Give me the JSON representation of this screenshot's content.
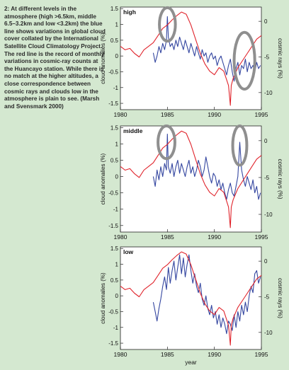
{
  "caption": "2: At different levels in the atmosphere (high >6.5km, middle 6.5–3.2km and low <3.2km) the blue line shows variations in global cloud cover collated by the International Satellite Cloud Climatology Project. The red line is the record of monthly variations in cosmic-ray counts at the Huancayo station. While there is no match at the higher altitudes, a close correspondence between cosmic rays and clouds low in the atmosphere is plain to see. (Marsh and Svensmark 2000)",
  "colors": {
    "background": "#d4e8d0",
    "plot_background": "#ffffff",
    "cloud_series": "#3446a0",
    "cosmic_series": "#e0242c",
    "highlight_circle": "#8f8f8f"
  },
  "chart_data": [
    {
      "type": "line",
      "panel_label": "high",
      "xlabel": "",
      "ylabel": "cloud anomalies (%)",
      "ylabel_right": "cosmic rays (%)",
      "xlim": [
        1980,
        1995
      ],
      "ylim": [
        -1.7,
        1.55
      ],
      "ylim_right": [
        -12.4,
        2.0
      ],
      "xticks": [
        1980,
        1985,
        1990,
        1995
      ],
      "yticks": [
        -1.5,
        -1.0,
        -0.5,
        0.0,
        0.5,
        1.0,
        1.5
      ],
      "yticks_right": [
        0,
        -5,
        -10
      ],
      "highlights": [
        {
          "x": 1985.0,
          "y": 1.0,
          "rx": 0.85,
          "ry": 0.53
        },
        {
          "x": 1993.2,
          "y": -0.15,
          "rx": 1.1,
          "ry": 0.9
        }
      ],
      "series": [
        {
          "name": "",
          "axis": "left",
          "x": [
            1983.5,
            1983.7,
            1983.9,
            1984.1,
            1984.3,
            1984.5,
            1984.7,
            1984.9,
            1985.0,
            1985.1,
            1985.3,
            1985.5,
            1985.7,
            1985.9,
            1986.1,
            1986.3,
            1986.5,
            1986.7,
            1986.9,
            1987.1,
            1987.3,
            1987.5,
            1987.7,
            1987.9,
            1988.1,
            1988.3,
            1988.5,
            1988.7,
            1988.9,
            1989.1,
            1989.3,
            1989.5,
            1989.7,
            1989.9,
            1990.1,
            1990.3,
            1990.5,
            1990.7,
            1990.9,
            1991.1,
            1991.3,
            1991.5,
            1991.7,
            1991.9,
            1992.1,
            1992.3,
            1992.5,
            1992.7,
            1992.9,
            1993.1,
            1993.3,
            1993.5,
            1993.7,
            1993.9,
            1994.1,
            1994.3,
            1994.5,
            1994.7,
            1994.9
          ],
          "y": [
            0.1,
            -0.2,
            0.0,
            0.3,
            0.1,
            0.4,
            0.2,
            0.5,
            1.25,
            0.6,
            0.3,
            0.4,
            0.2,
            0.5,
            0.3,
            0.6,
            0.4,
            0.2,
            0.5,
            0.3,
            0.1,
            0.4,
            0.2,
            0.0,
            0.3,
            0.1,
            -0.1,
            0.2,
            0.0,
            0.1,
            -0.2,
            0.0,
            0.1,
            -0.1,
            0.0,
            -0.3,
            -0.1,
            0.0,
            -0.2,
            -0.4,
            -0.6,
            -0.3,
            -0.1,
            -0.5,
            -0.8,
            -0.4,
            -0.2,
            -0.6,
            -0.3,
            -0.4,
            -0.1,
            -0.5,
            -0.2,
            -0.4,
            -0.3,
            -0.5,
            -0.2,
            -0.4,
            -0.3
          ]
        },
        {
          "name": "",
          "axis": "right",
          "x": [
            1980.0,
            1980.5,
            1981.0,
            1981.5,
            1982.0,
            1982.5,
            1983.0,
            1983.5,
            1984.0,
            1984.5,
            1985.0,
            1985.5,
            1986.0,
            1986.5,
            1987.0,
            1987.5,
            1988.0,
            1988.5,
            1989.0,
            1989.5,
            1990.0,
            1990.5,
            1991.0,
            1991.5,
            1991.7,
            1991.8,
            1992.0,
            1992.5,
            1993.0,
            1993.5,
            1994.0,
            1994.5,
            1995.0
          ],
          "y": [
            -3.5,
            -4.0,
            -3.8,
            -4.5,
            -5.0,
            -4.0,
            -3.5,
            -3.0,
            -2.0,
            -1.0,
            -0.5,
            0.2,
            0.8,
            1.3,
            1.0,
            -0.5,
            -2.5,
            -4.5,
            -6.0,
            -7.0,
            -7.5,
            -6.5,
            -7.0,
            -9.0,
            -11.8,
            -9.0,
            -8.0,
            -6.5,
            -5.5,
            -4.5,
            -3.5,
            -2.5,
            -2.0
          ]
        }
      ]
    },
    {
      "type": "line",
      "panel_label": "middle",
      "xlabel": "",
      "ylabel": "cloud anomalies (%)",
      "ylabel_right": "cosmic rays (%)",
      "xlim": [
        1980,
        1995
      ],
      "ylim": [
        -1.7,
        1.55
      ],
      "ylim_right": [
        -12.4,
        2.0
      ],
      "xticks": [
        1980,
        1985,
        1990,
        1995
      ],
      "yticks": [
        -1.5,
        -1.0,
        -0.5,
        0.0,
        0.5,
        1.0,
        1.5
      ],
      "yticks_right": [
        0,
        -5,
        -10
      ],
      "highlights": [
        {
          "x": 1984.9,
          "y": 1.05,
          "rx": 0.9,
          "ry": 0.5
        },
        {
          "x": 1992.7,
          "y": 0.95,
          "rx": 0.75,
          "ry": 0.6
        }
      ],
      "series": [
        {
          "name": "",
          "axis": "left",
          "x": [
            1983.5,
            1983.7,
            1983.9,
            1984.1,
            1984.3,
            1984.5,
            1984.7,
            1984.9,
            1985.0,
            1985.1,
            1985.3,
            1985.5,
            1985.7,
            1985.9,
            1986.1,
            1986.3,
            1986.5,
            1986.7,
            1986.9,
            1987.1,
            1987.3,
            1987.5,
            1987.7,
            1987.9,
            1988.1,
            1988.3,
            1988.5,
            1988.7,
            1988.9,
            1989.1,
            1989.3,
            1989.5,
            1989.7,
            1989.9,
            1990.1,
            1990.3,
            1990.5,
            1990.7,
            1990.9,
            1991.1,
            1991.3,
            1991.5,
            1991.7,
            1991.9,
            1992.1,
            1992.3,
            1992.5,
            1992.7,
            1992.9,
            1993.1,
            1993.3,
            1993.5,
            1993.7,
            1993.9,
            1994.1,
            1994.3,
            1994.5,
            1994.7,
            1994.9
          ],
          "y": [
            0.0,
            -0.3,
            0.2,
            -0.1,
            0.3,
            0.0,
            0.4,
            0.2,
            1.3,
            0.3,
            0.1,
            0.4,
            0.0,
            0.3,
            0.5,
            0.1,
            0.4,
            0.2,
            0.0,
            0.3,
            0.5,
            0.1,
            0.3,
            0.0,
            0.2,
            0.5,
            0.3,
            0.0,
            0.2,
            0.6,
            0.3,
            0.0,
            -0.2,
            0.1,
            0.0,
            -0.3,
            -0.1,
            -0.4,
            -0.2,
            -0.5,
            -0.7,
            -0.4,
            -0.2,
            -0.5,
            -0.6,
            -0.3,
            0.0,
            1.05,
            0.2,
            -0.1,
            -0.3,
            0.0,
            -0.2,
            -0.4,
            -0.1,
            -0.5,
            -0.3,
            -0.7,
            -0.5
          ]
        },
        {
          "name": "",
          "axis": "right",
          "x": [
            1980.0,
            1980.5,
            1981.0,
            1981.5,
            1982.0,
            1982.5,
            1983.0,
            1983.5,
            1984.0,
            1984.5,
            1985.0,
            1985.5,
            1986.0,
            1986.5,
            1987.0,
            1987.5,
            1988.0,
            1988.5,
            1989.0,
            1989.5,
            1990.0,
            1990.5,
            1991.0,
            1991.5,
            1991.7,
            1991.8,
            1992.0,
            1992.5,
            1993.0,
            1993.5,
            1994.0,
            1994.5,
            1995.0
          ],
          "y": [
            -3.5,
            -4.0,
            -3.8,
            -4.5,
            -5.0,
            -4.0,
            -3.5,
            -3.0,
            -2.0,
            -1.0,
            -0.5,
            0.2,
            0.8,
            1.3,
            1.0,
            -0.5,
            -2.5,
            -4.5,
            -6.0,
            -7.0,
            -7.5,
            -6.5,
            -7.0,
            -9.0,
            -11.8,
            -9.0,
            -8.0,
            -6.5,
            -5.5,
            -4.5,
            -3.5,
            -2.5,
            -2.0
          ]
        }
      ]
    },
    {
      "type": "line",
      "panel_label": "low",
      "xlabel": "year",
      "ylabel": "cloud anomalies (%)",
      "ylabel_right": "cosmic rays (%)",
      "xlim": [
        1980,
        1995
      ],
      "ylim": [
        -1.7,
        1.55
      ],
      "ylim_right": [
        -12.4,
        2.0
      ],
      "xticks": [
        1980,
        1985,
        1990,
        1995
      ],
      "yticks": [
        -1.5,
        -1.0,
        -0.5,
        0.0,
        0.5,
        1.0,
        1.5
      ],
      "yticks_right": [
        0,
        -5,
        -10
      ],
      "highlights": [],
      "series": [
        {
          "name": "",
          "axis": "left",
          "x": [
            1983.5,
            1983.7,
            1983.9,
            1984.1,
            1984.3,
            1984.5,
            1984.7,
            1984.9,
            1985.1,
            1985.3,
            1985.5,
            1985.7,
            1985.9,
            1986.1,
            1986.3,
            1986.5,
            1986.7,
            1986.9,
            1987.1,
            1987.3,
            1987.5,
            1987.7,
            1987.9,
            1988.1,
            1988.3,
            1988.5,
            1988.7,
            1988.9,
            1989.1,
            1989.3,
            1989.5,
            1989.7,
            1989.9,
            1990.1,
            1990.3,
            1990.5,
            1990.7,
            1990.9,
            1991.1,
            1991.3,
            1991.5,
            1991.7,
            1991.9,
            1992.1,
            1992.3,
            1992.5,
            1992.7,
            1992.9,
            1993.1,
            1993.3,
            1993.5,
            1993.7,
            1993.9,
            1994.1,
            1994.3,
            1994.5,
            1994.7,
            1994.9
          ],
          "y": [
            -0.2,
            -0.5,
            -0.8,
            -0.4,
            -0.1,
            0.3,
            0.6,
            0.2,
            0.9,
            0.4,
            0.8,
            1.1,
            0.5,
            0.9,
            1.3,
            0.7,
            1.2,
            0.6,
            1.0,
            1.3,
            0.8,
            0.4,
            0.7,
            0.3,
            0.1,
            0.4,
            -0.1,
            -0.3,
            0.0,
            -0.4,
            -0.6,
            -0.3,
            -0.7,
            -0.5,
            -0.9,
            -0.6,
            -1.0,
            -0.7,
            -0.9,
            -1.2,
            -0.8,
            -0.9,
            -1.1,
            -0.6,
            -1.0,
            -0.5,
            -0.8,
            -0.3,
            -0.6,
            -0.2,
            -0.5,
            0.0,
            0.3,
            0.1,
            0.7,
            0.8,
            0.4,
            0.6
          ]
        },
        {
          "name": "",
          "axis": "right",
          "x": [
            1980.0,
            1980.5,
            1981.0,
            1981.5,
            1982.0,
            1982.5,
            1983.0,
            1983.5,
            1984.0,
            1984.5,
            1985.0,
            1985.5,
            1986.0,
            1986.5,
            1987.0,
            1987.5,
            1988.0,
            1988.5,
            1989.0,
            1989.5,
            1990.0,
            1990.5,
            1991.0,
            1991.5,
            1991.7,
            1991.8,
            1992.0,
            1992.5,
            1993.0,
            1993.5,
            1994.0,
            1994.5,
            1995.0
          ],
          "y": [
            -3.5,
            -4.0,
            -3.8,
            -4.5,
            -5.0,
            -4.0,
            -3.5,
            -3.0,
            -2.0,
            -1.0,
            -0.5,
            0.2,
            0.8,
            1.3,
            1.0,
            -0.5,
            -2.5,
            -4.5,
            -6.0,
            -7.0,
            -7.5,
            -6.5,
            -7.0,
            -9.0,
            -11.8,
            -9.0,
            -8.0,
            -6.5,
            -5.5,
            -4.5,
            -3.5,
            -2.5,
            -2.0
          ]
        }
      ]
    }
  ]
}
